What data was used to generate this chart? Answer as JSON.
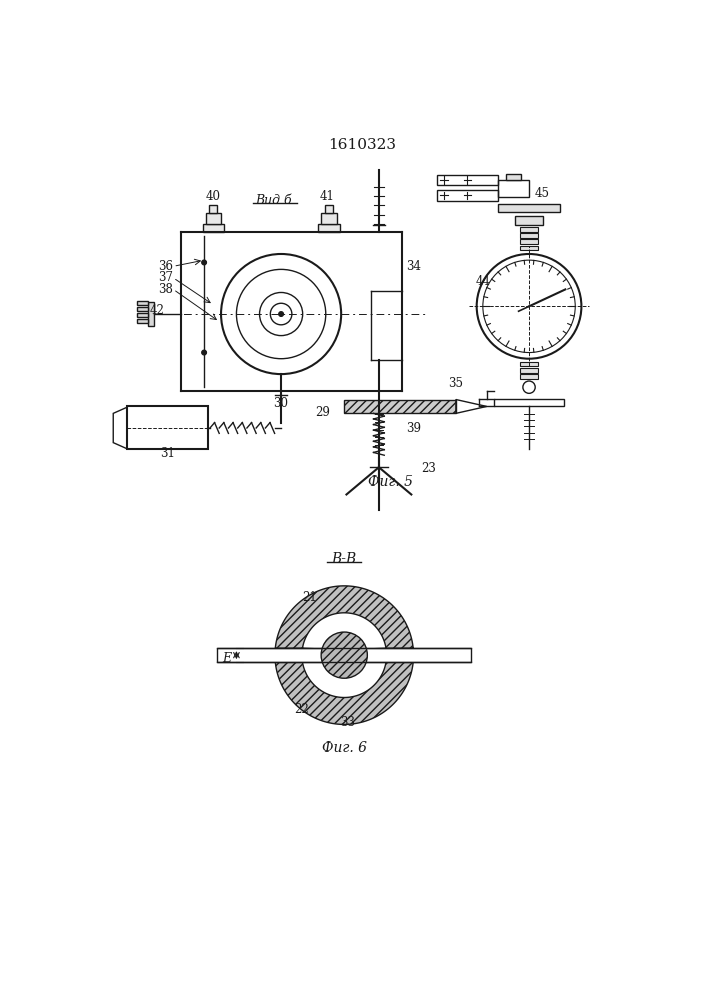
{
  "title": "1610323",
  "fig5_label": "Фиг. 5",
  "fig6_label": "Фиг. 6",
  "vid_b_label": "Вид б",
  "section_label": "В-В",
  "bg_color": "#ffffff",
  "line_color": "#1a1a1a"
}
